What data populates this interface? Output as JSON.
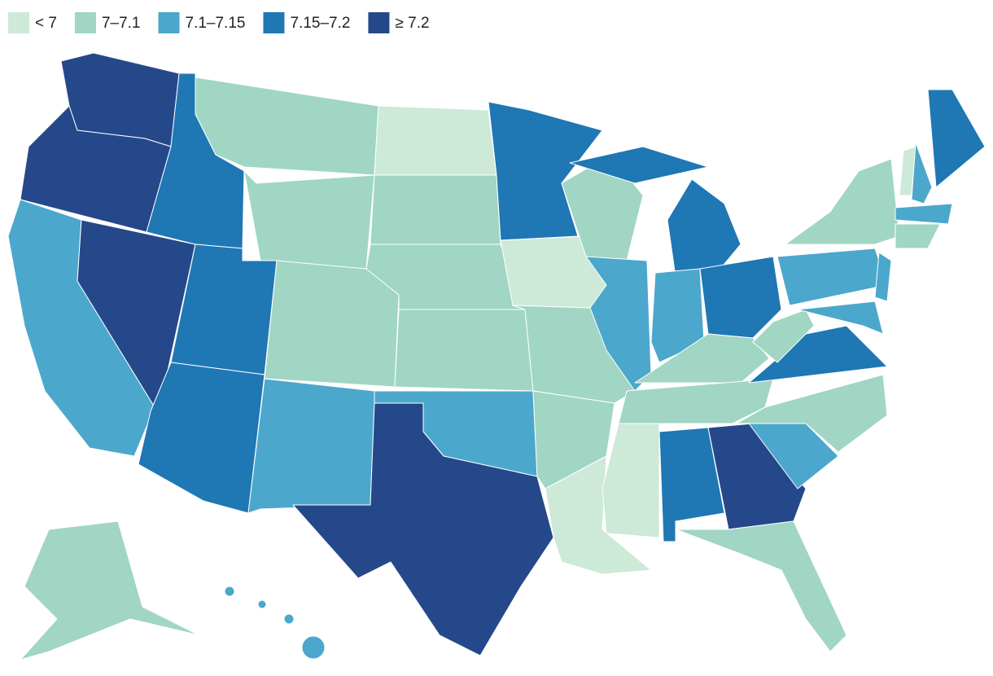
{
  "legend": [
    {
      "label": "< 7",
      "color": "#cde9d7"
    },
    {
      "label": "7–7.1",
      "color": "#a0d6c3"
    },
    {
      "label": "7.1–7.15",
      "color": "#4ca7cc"
    },
    {
      "label": "7.15–7.2",
      "color": "#1f77b4"
    },
    {
      "label": "≥ 7.2",
      "color": "#25488a"
    }
  ]
}
